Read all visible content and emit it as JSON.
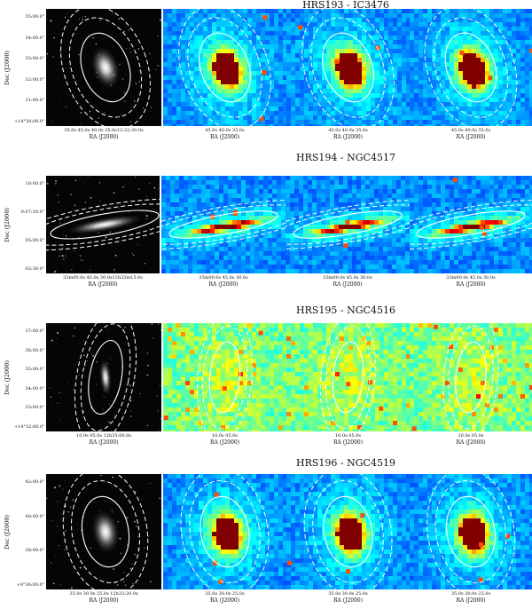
{
  "figure": {
    "panels": [
      {
        "title": "HRS193 - IC3476",
        "ylabel": "Dec (J2000)",
        "yticks": [
          "35:00.0\"",
          "34:00.0\"",
          "33:00.0\"",
          "32:00.0\"",
          "31:00.0\"",
          "+14°30:00.0\""
        ],
        "xticks_optical": "35.0s   45.0s 40.0s  35.0s13:32:30.0s",
        "xtick_map": "45.0s  40.0s  35.0s",
        "xlabel": "RA (J2000)",
        "cmap": "blob"
      },
      {
        "title": "HRS194 - NGC4517",
        "ylabel": "Dec (J2000)",
        "yticks": [
          "10:00.0\"",
          "0:07:30.0\"",
          "05:00.0\"",
          "02:30.0\""
        ],
        "xticks_optical": "33m00.0s 45.0s 30.0s12h32m15.0s",
        "xtick_map": "33m00.0s 45.0s  30.0s",
        "xlabel": "RA (J2000)",
        "cmap": "edge"
      },
      {
        "title": "HRS195 - NGC4516",
        "ylabel": "Dec (J2000)",
        "yticks": [
          "37:00.0\"",
          "36:00.0\"",
          "35:00.0\"",
          "34:00.0\"",
          "33:00.0\"",
          "+14°32:00.0\""
        ],
        "xticks_optical": "10.0s   05.0s 12h33:00.0s",
        "xtick_map": "10.0s   05.0s",
        "xlabel": "RA (J2000)",
        "cmap": "faint"
      },
      {
        "title": "HRS196 - NGC4519",
        "ylabel": "Dec (J2000)",
        "yticks": [
          "42:00.0\"",
          "40:00.0\"",
          "38:00.0\"",
          "+8°36:00.0\""
        ],
        "xticks_optical": "35.0s   30.0s  25.0s  12h33:20.0s",
        "xtick_map": "35.0s  30.0s  25.0s",
        "xlabel": "RA (J2000)",
        "cmap": "blob"
      }
    ]
  }
}
